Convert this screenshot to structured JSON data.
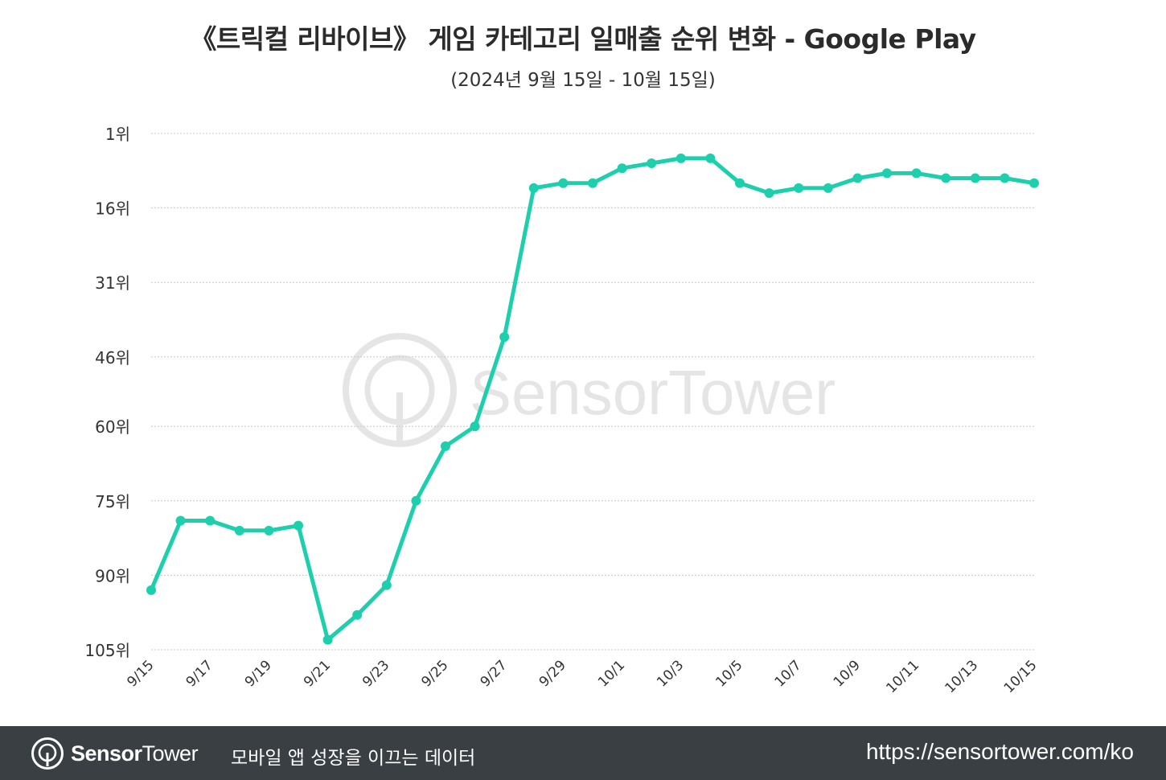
{
  "chart_data": {
    "type": "line",
    "title": "《트릭컬 리바이브》 게임 카테고리 일매출 순위 변화 - Google Play",
    "subtitle": "(2024년 9월 15일 - 10월 15일)",
    "xlabel": "",
    "ylabel": "",
    "y_reversed": true,
    "ylim": [
      1,
      105
    ],
    "y_ticks": [
      1,
      16,
      31,
      46,
      60,
      75,
      90,
      105
    ],
    "y_tick_labels": [
      "1위",
      "16위",
      "31위",
      "46위",
      "60위",
      "75위",
      "90위",
      "105위"
    ],
    "grid": true,
    "x": [
      "9/15",
      "9/16",
      "9/17",
      "9/18",
      "9/19",
      "9/20",
      "9/21",
      "9/22",
      "9/23",
      "9/24",
      "9/25",
      "9/26",
      "9/27",
      "9/28",
      "9/29",
      "9/30",
      "10/1",
      "10/2",
      "10/3",
      "10/4",
      "10/5",
      "10/6",
      "10/7",
      "10/8",
      "10/9",
      "10/10",
      "10/11",
      "10/12",
      "10/13",
      "10/14",
      "10/15"
    ],
    "x_tick_labels": [
      "9/15",
      "9/17",
      "9/19",
      "9/21",
      "9/23",
      "9/25",
      "9/27",
      "9/29",
      "10/1",
      "10/3",
      "10/5",
      "10/7",
      "10/9",
      "10/11",
      "10/13",
      "10/15"
    ],
    "series": [
      {
        "name": "",
        "color": "#1ecfae",
        "values": [
          93,
          79,
          79,
          81,
          81,
          80,
          103,
          98,
          92,
          75,
          64,
          60,
          42,
          12,
          11,
          11,
          8,
          7,
          6,
          6,
          11,
          13,
          12,
          12,
          10,
          9,
          9,
          10,
          10,
          10,
          11
        ]
      }
    ]
  },
  "watermark": "SensorTower",
  "footer": {
    "brand_bold": "Sensor",
    "brand_light": "Tower",
    "tagline": "모바일 앱 성장을 이끄는 데이터",
    "url": "https://sensortower.com/ko"
  }
}
